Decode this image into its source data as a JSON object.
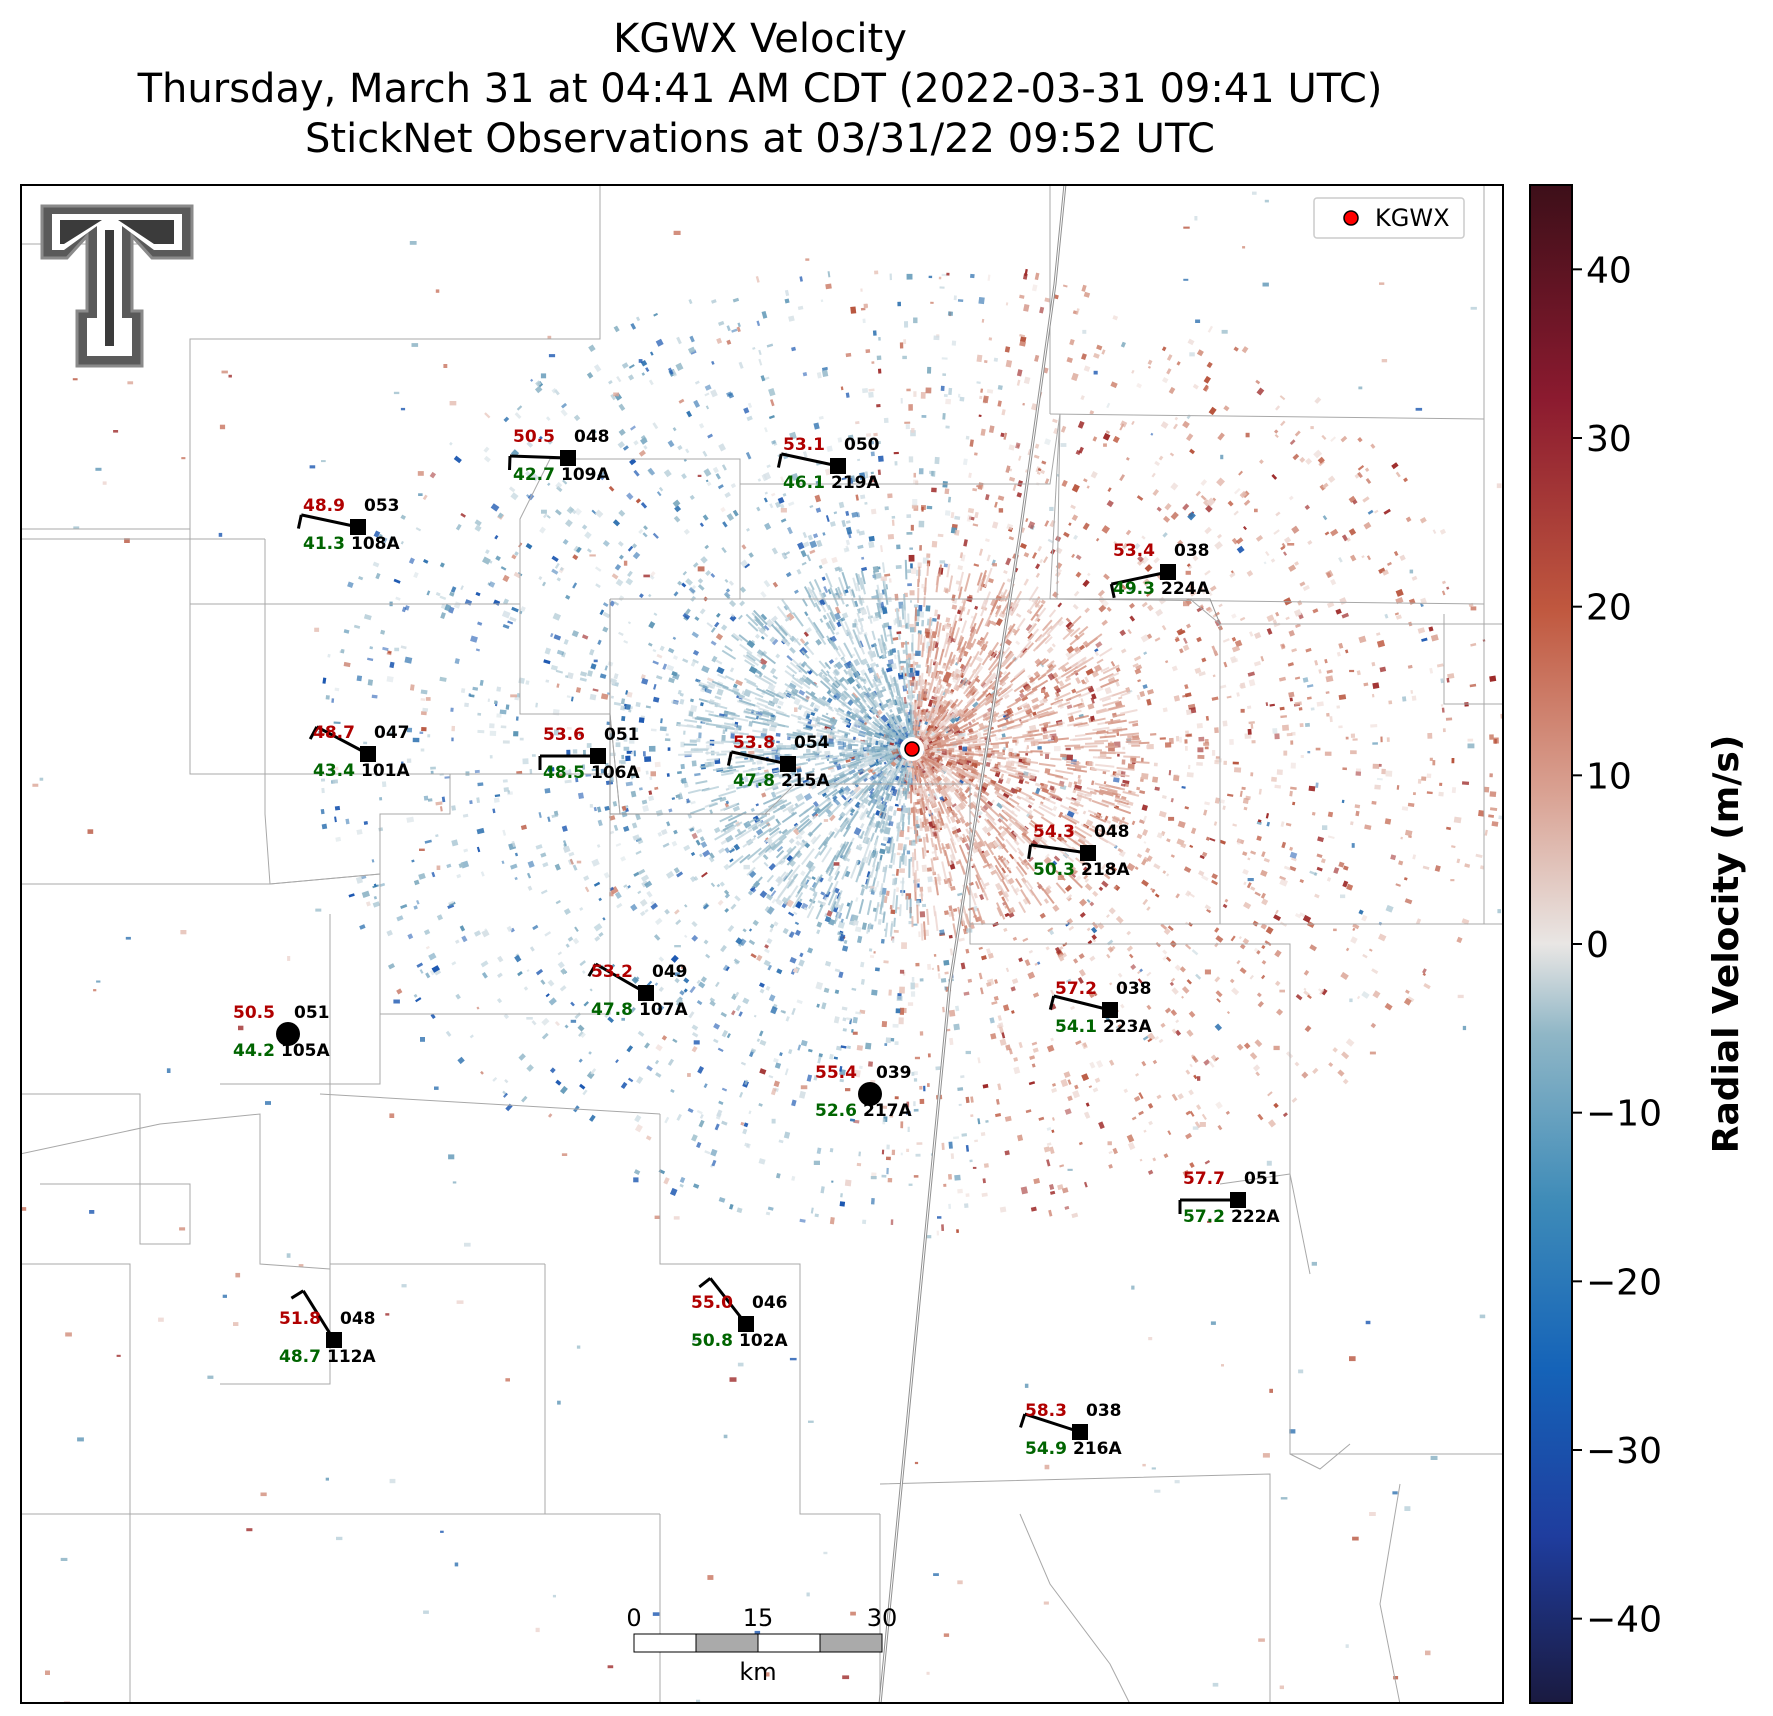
{
  "title": {
    "line1": "KGWX Velocity",
    "line2": "Thursday, March 31 at 04:41 AM CDT (2022-03-31 09:41 UTC)",
    "line3": "StickNet Observations at 03/31/22 09:52 UTC"
  },
  "legend": {
    "label": "KGWX",
    "marker_color": "#ff0000"
  },
  "colorbar": {
    "label": "Radial Velocity (m/s)",
    "min": -45,
    "max": 45,
    "ticks": [
      "40",
      "30",
      "20",
      "10",
      "0",
      "−10",
      "−20",
      "−30",
      "−40"
    ],
    "tick_values": [
      40,
      30,
      20,
      10,
      0,
      -10,
      -20,
      -30,
      -40
    ],
    "colors": [
      "#1a1a40",
      "#1f3d9e",
      "#1563b8",
      "#3e8bb8",
      "#8fb6c6",
      "#e9e6e4",
      "#d9a192",
      "#c0583f",
      "#8b1a2f",
      "#3d0f19"
    ]
  },
  "scalebar": {
    "ticks": [
      "0",
      "15",
      "30"
    ],
    "unit": "km"
  },
  "logo": {
    "name": "texas-tech-double-t-logo"
  },
  "stations": [
    {
      "id": "108A",
      "temp": "48.9",
      "dew": "41.3",
      "dir": "053",
      "shape": "square"
    },
    {
      "id": "109A",
      "temp": "50.5",
      "dew": "42.7",
      "dir": "048",
      "shape": "square"
    },
    {
      "id": "219A",
      "temp": "53.1",
      "dew": "46.1",
      "dir": "050",
      "shape": "square"
    },
    {
      "id": "224A",
      "temp": "53.4",
      "dew": "49.3",
      "dir": "038",
      "shape": "square"
    },
    {
      "id": "101A",
      "temp": "48.7",
      "dew": "43.4",
      "dir": "047",
      "shape": "square"
    },
    {
      "id": "106A",
      "temp": "53.6",
      "dew": "48.5",
      "dir": "051",
      "shape": "square"
    },
    {
      "id": "215A",
      "temp": "53.8",
      "dew": "47.8",
      "dir": "054",
      "shape": "square"
    },
    {
      "id": "218A",
      "temp": "54.3",
      "dew": "50.3",
      "dir": "048",
      "shape": "square"
    },
    {
      "id": "107A",
      "temp": "53.2",
      "dew": "47.8",
      "dir": "049",
      "shape": "square"
    },
    {
      "id": "223A",
      "temp": "57.2",
      "dew": "54.1",
      "dir": "038",
      "shape": "square"
    },
    {
      "id": "105A",
      "temp": "50.5",
      "dew": "44.2",
      "dir": "051",
      "shape": "circle"
    },
    {
      "id": "217A",
      "temp": "55.4",
      "dew": "52.6",
      "dir": "039",
      "shape": "circle"
    },
    {
      "id": "222A",
      "temp": "57.7",
      "dew": "57.2",
      "dir": "051",
      "shape": "square"
    },
    {
      "id": "112A",
      "temp": "51.8",
      "dew": "48.7",
      "dir": "048",
      "shape": "square"
    },
    {
      "id": "102A",
      "temp": "55.0",
      "dew": "50.8",
      "dir": "046",
      "shape": "square"
    },
    {
      "id": "216A",
      "temp": "58.3",
      "dew": "54.9",
      "dir": "038",
      "shape": "square"
    }
  ]
}
